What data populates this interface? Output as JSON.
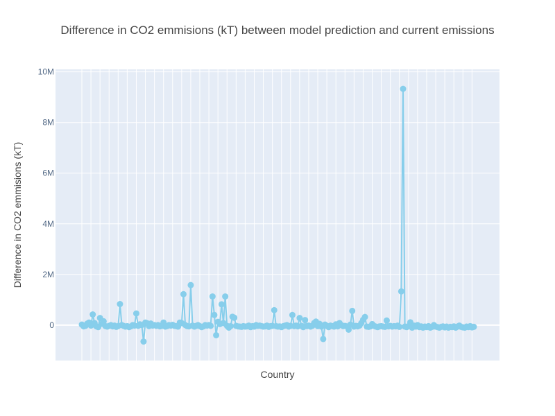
{
  "chart_data": {
    "type": "line",
    "title": "Difference in CO2 emmisions (kT) between model prediction and current emissions",
    "xlabel": "Country",
    "ylabel": "Difference in CO2 emmisions (kT)",
    "ylim": [
      -1400000,
      10100000
    ],
    "yticks": [
      {
        "value": 0,
        "label": "0"
      },
      {
        "value": 2000000,
        "label": "2M"
      },
      {
        "value": 4000000,
        "label": "4M"
      },
      {
        "value": 6000000,
        "label": "6M"
      },
      {
        "value": 8000000,
        "label": "8M"
      },
      {
        "value": 10000000,
        "label": "10M"
      }
    ],
    "x_tick_labels_visible": false,
    "grid": true,
    "legend": "none",
    "markers": true,
    "colors": {
      "series": "#87CEEB",
      "plot_background": "#E5ECF6",
      "grid": "#FFFFFF",
      "text": "#444444",
      "tick_text": "#506784"
    },
    "series": [
      {
        "values": [
          20000,
          -50000,
          -30000,
          60000,
          100000,
          -20000,
          420000,
          80000,
          -50000,
          -80000,
          280000,
          50000,
          150000,
          -40000,
          -60000,
          -30000,
          0,
          -50000,
          -20000,
          -70000,
          -40000,
          830000,
          0,
          -30000,
          -60000,
          -40000,
          -80000,
          -50000,
          0,
          -20000,
          460000,
          -30000,
          30000,
          0,
          -650000,
          100000,
          70000,
          -40000,
          60000,
          -20000,
          0,
          -30000,
          0,
          -50000,
          -30000,
          100000,
          -60000,
          -40000,
          0,
          -20000,
          10000,
          -30000,
          -40000,
          -60000,
          100000,
          80000,
          1220000,
          0,
          -40000,
          -50000,
          1580000,
          -20000,
          -60000,
          -30000,
          0,
          -40000,
          -80000,
          -50000,
          0,
          -20000,
          0,
          -30000,
          1130000,
          400000,
          -400000,
          130000,
          40000,
          820000,
          80000,
          1130000,
          -30000,
          -100000,
          -40000,
          330000,
          290000,
          -30000,
          -50000,
          -60000,
          -70000,
          -40000,
          -60000,
          -50000,
          -20000,
          -80000,
          -40000,
          -60000,
          0,
          -30000,
          -20000,
          -40000,
          -60000,
          -50000,
          -20000,
          -70000,
          -40000,
          -30000,
          590000,
          -40000,
          -60000,
          -50000,
          -80000,
          -40000,
          -20000,
          0,
          -60000,
          -30000,
          400000,
          -40000,
          -20000,
          -50000,
          280000,
          -30000,
          -80000,
          200000,
          -40000,
          -20000,
          -60000,
          -30000,
          80000,
          140000,
          -40000,
          50000,
          -60000,
          -550000,
          20000,
          -30000,
          -80000,
          -20000,
          -40000,
          -60000,
          30000,
          -50000,
          80000,
          0,
          -40000,
          -30000,
          -50000,
          -180000,
          20000,
          560000,
          -60000,
          -30000,
          -50000,
          -20000,
          80000,
          210000,
          320000,
          -60000,
          -70000,
          -50000,
          40000,
          -30000,
          -60000,
          -80000,
          -50000,
          -40000,
          -60000,
          -70000,
          180000,
          -50000,
          -30000,
          -60000,
          -40000,
          -50000,
          -20000,
          -70000,
          1330000,
          9330000,
          -60000,
          -80000,
          -40000,
          110000,
          -100000,
          -20000,
          -60000,
          0,
          -80000,
          -50000,
          -100000,
          -60000,
          -80000,
          -40000,
          -100000,
          -70000,
          0,
          -60000,
          -80000,
          -100000,
          -70000,
          -50000,
          -90000,
          -60000,
          -100000,
          -70000,
          -80000,
          -50000,
          -100000,
          -60000,
          -20000,
          -70000,
          -90000,
          -100000,
          -60000,
          -80000,
          -40000,
          -90000,
          -70000
        ]
      }
    ]
  }
}
